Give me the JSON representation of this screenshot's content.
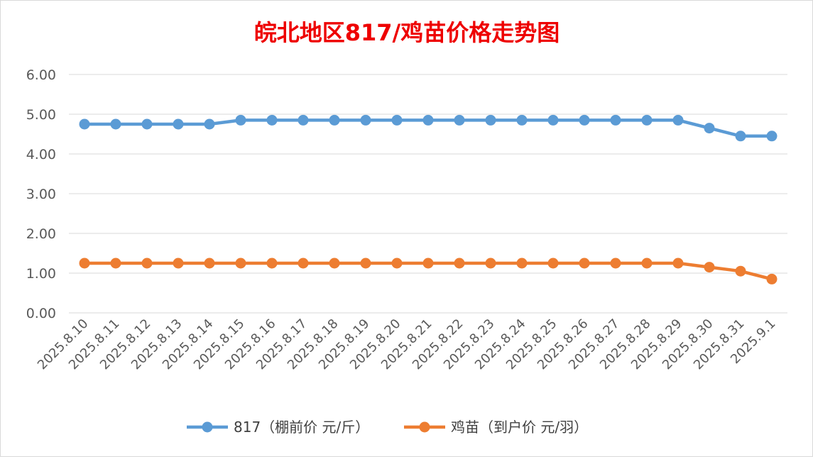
{
  "chart_data": {
    "type": "line",
    "title": "皖北地区817/鸡苗价格走势图",
    "xlabel": "",
    "ylabel": "",
    "ylim": [
      0,
      6
    ],
    "yticks": [
      "0.00",
      "1.00",
      "2.00",
      "3.00",
      "4.00",
      "5.00",
      "6.00"
    ],
    "grid": true,
    "legend_position": "bottom",
    "categories": [
      "2025.8.10",
      "2025.8.11",
      "2025.8.12",
      "2025.8.13",
      "2025.8.14",
      "2025.8.15",
      "2025.8.16",
      "2025.8.17",
      "2025.8.18",
      "2025.8.19",
      "2025.8.20",
      "2025.8.21",
      "2025.8.22",
      "2025.8.23",
      "2025.8.24",
      "2025.8.25",
      "2025.8.26",
      "2025.8.27",
      "2025.8.28",
      "2025.8.29",
      "2025.8.30",
      "2025.8.31",
      "2025.9.1"
    ],
    "series": [
      {
        "name": "817（棚前价 元/斤）",
        "color": "#5b9bd5",
        "values": [
          4.75,
          4.75,
          4.75,
          4.75,
          4.75,
          4.85,
          4.85,
          4.85,
          4.85,
          4.85,
          4.85,
          4.85,
          4.85,
          4.85,
          4.85,
          4.85,
          4.85,
          4.85,
          4.85,
          4.85,
          4.65,
          4.45,
          4.45
        ]
      },
      {
        "name": "鸡苗（到户价 元/羽）",
        "color": "#ed7d31",
        "values": [
          1.25,
          1.25,
          1.25,
          1.25,
          1.25,
          1.25,
          1.25,
          1.25,
          1.25,
          1.25,
          1.25,
          1.25,
          1.25,
          1.25,
          1.25,
          1.25,
          1.25,
          1.25,
          1.25,
          1.25,
          1.15,
          1.05,
          0.85
        ]
      }
    ]
  }
}
